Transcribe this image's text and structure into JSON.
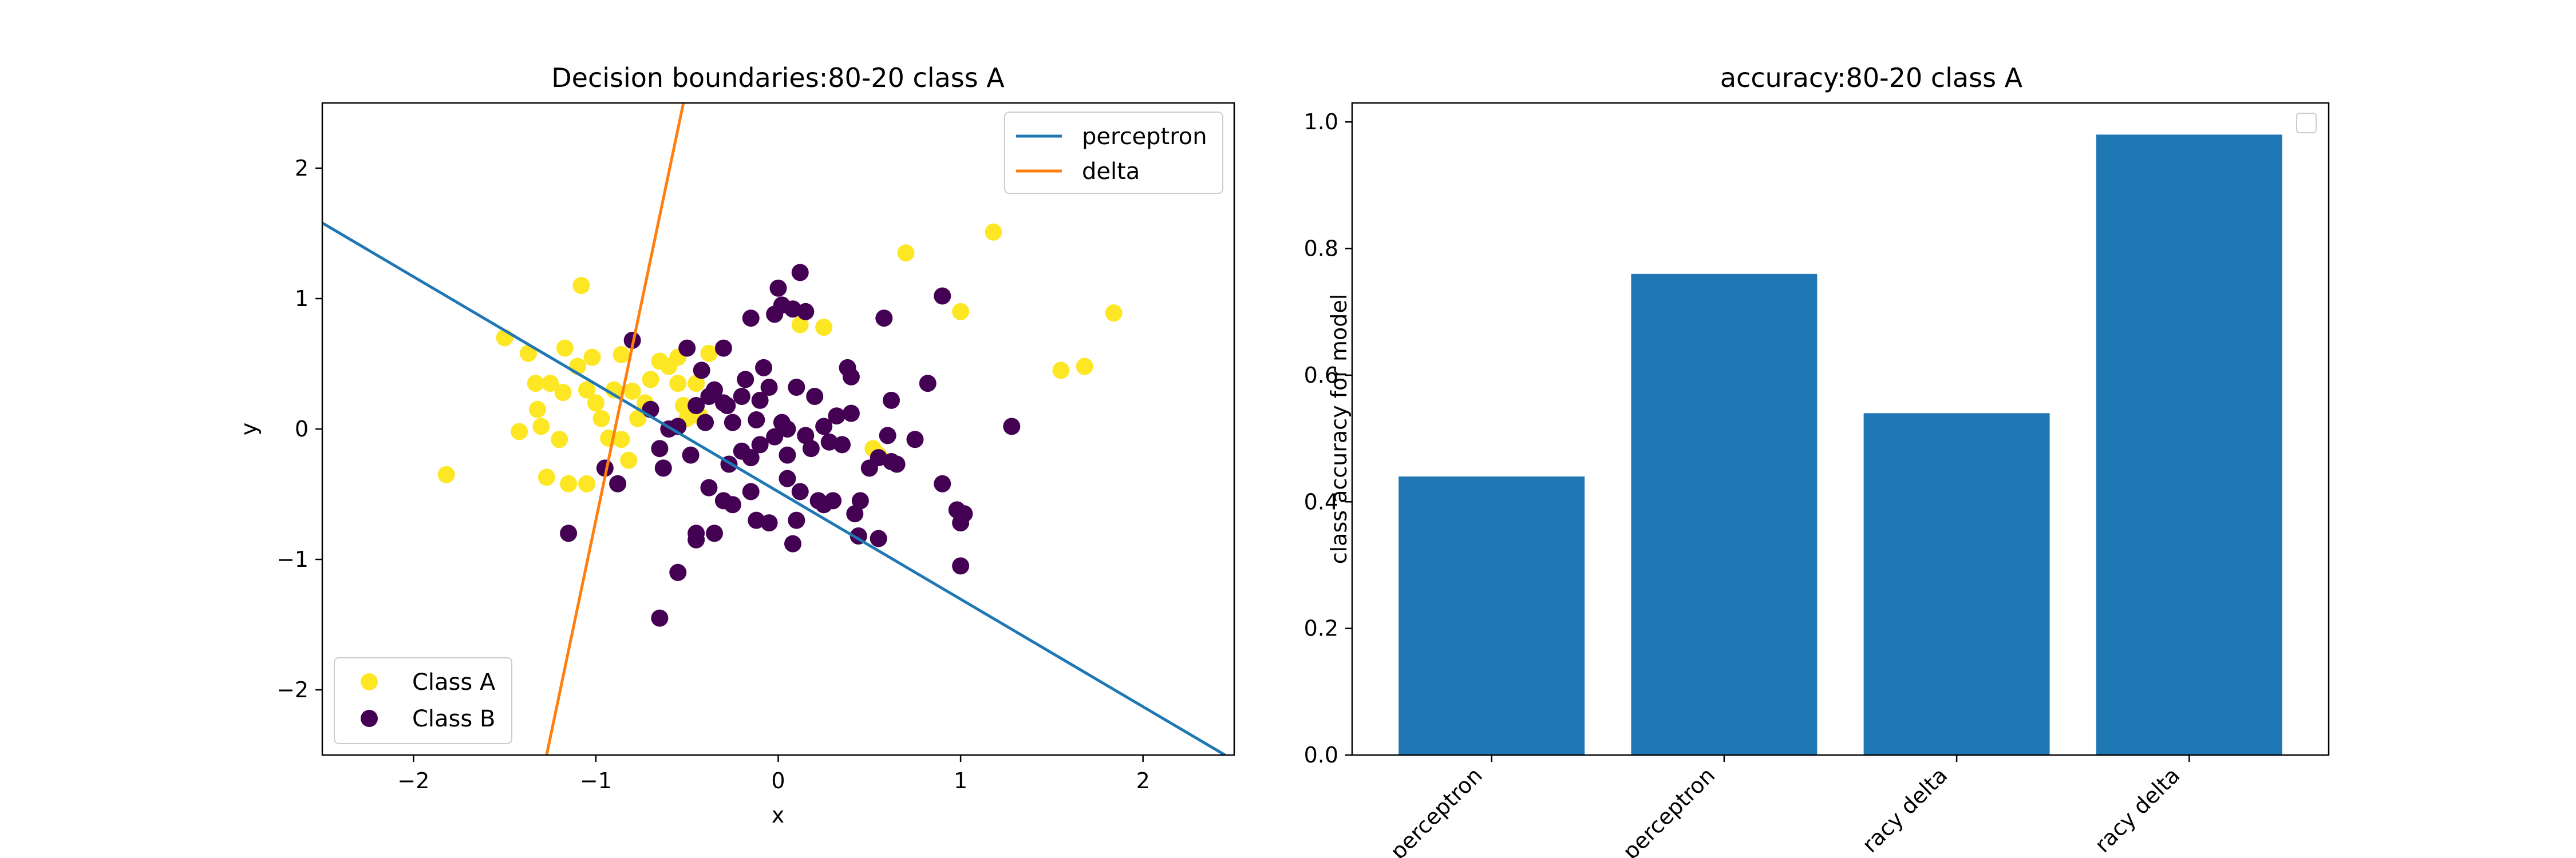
{
  "chart_data": [
    {
      "type": "scatter",
      "title": "Decision boundaries:80-20 class A",
      "xlabel": "x",
      "ylabel": "y",
      "xlim": [
        -2.5,
        2.5
      ],
      "ylim": [
        -2.5,
        2.5
      ],
      "xticks": [
        -2,
        -1,
        0,
        1,
        2
      ],
      "yticks": [
        -2,
        -1,
        0,
        1,
        2
      ],
      "xtick_labels": [
        "−2",
        "−1",
        "0",
        "1",
        "2"
      ],
      "ytick_labels": [
        "−2",
        "−1",
        "0",
        "1",
        "2"
      ],
      "grid": false,
      "lines": [
        {
          "name": "perceptron",
          "color": "#1f77b4",
          "points": [
            [
              -2.5,
              1.58
            ],
            [
              2.45,
              -2.5
            ]
          ]
        },
        {
          "name": "delta",
          "color": "#ff7f0e",
          "points": [
            [
              -1.27,
              -2.5
            ],
            [
              -0.52,
              2.5
            ]
          ]
        }
      ],
      "lines_legend_position": "upper right",
      "scatter_legend_position": "lower left",
      "series": [
        {
          "name": "Class A",
          "color": "#fde725",
          "points": [
            [
              -1.82,
              -0.35
            ],
            [
              -1.5,
              0.7
            ],
            [
              -1.37,
              0.58
            ],
            [
              -1.42,
              -0.02
            ],
            [
              -1.33,
              0.35
            ],
            [
              -1.32,
              0.15
            ],
            [
              -1.3,
              0.02
            ],
            [
              -1.27,
              -0.37
            ],
            [
              -1.25,
              0.35
            ],
            [
              -1.2,
              -0.08
            ],
            [
              -1.18,
              0.28
            ],
            [
              -1.17,
              0.62
            ],
            [
              -1.15,
              -0.42
            ],
            [
              -1.1,
              0.48
            ],
            [
              -1.08,
              1.1
            ],
            [
              -1.05,
              0.3
            ],
            [
              -1.05,
              -0.42
            ],
            [
              -1.02,
              0.55
            ],
            [
              -1.0,
              0.2
            ],
            [
              -0.97,
              0.08
            ],
            [
              -0.93,
              -0.07
            ],
            [
              -0.9,
              0.3
            ],
            [
              -0.86,
              0.57
            ],
            [
              -0.86,
              -0.08
            ],
            [
              -0.8,
              0.29
            ],
            [
              -0.82,
              -0.24
            ],
            [
              -0.77,
              0.08
            ],
            [
              -0.73,
              0.2
            ],
            [
              -0.7,
              0.38
            ],
            [
              -0.65,
              0.52
            ],
            [
              -0.6,
              0.48
            ],
            [
              -0.55,
              0.55
            ],
            [
              -0.55,
              0.35
            ],
            [
              -0.52,
              0.18
            ],
            [
              -0.5,
              0.08
            ],
            [
              -0.45,
              0.35
            ],
            [
              -0.43,
              0.1
            ],
            [
              -0.38,
              0.58
            ],
            [
              0.12,
              0.8
            ],
            [
              0.25,
              0.78
            ],
            [
              0.55,
              -0.2
            ],
            [
              0.52,
              -0.15
            ],
            [
              0.7,
              1.35
            ],
            [
              1.0,
              0.9
            ],
            [
              1.18,
              1.51
            ],
            [
              1.55,
              0.45
            ],
            [
              1.68,
              0.48
            ],
            [
              1.84,
              0.89
            ]
          ]
        },
        {
          "name": "Class B",
          "color": "#440154",
          "points": [
            [
              -1.15,
              -0.8
            ],
            [
              -0.95,
              -0.3
            ],
            [
              -0.88,
              -0.42
            ],
            [
              -0.8,
              0.68
            ],
            [
              -0.7,
              0.15
            ],
            [
              -0.65,
              -0.15
            ],
            [
              -0.63,
              -0.3
            ],
            [
              -0.6,
              0.0
            ],
            [
              -0.55,
              0.02
            ],
            [
              -0.5,
              0.62
            ],
            [
              -0.48,
              -0.2
            ],
            [
              -0.45,
              0.18
            ],
            [
              -0.42,
              0.45
            ],
            [
              -0.4,
              0.05
            ],
            [
              -0.38,
              0.25
            ],
            [
              -0.35,
              0.3
            ],
            [
              -0.3,
              0.2
            ],
            [
              -0.28,
              0.18
            ],
            [
              -0.3,
              0.62
            ],
            [
              -0.25,
              0.05
            ],
            [
              -0.2,
              0.25
            ],
            [
              -0.18,
              0.38
            ],
            [
              -0.15,
              0.85
            ],
            [
              -0.2,
              -0.17
            ],
            [
              -0.15,
              -0.22
            ],
            [
              -0.12,
              0.07
            ],
            [
              -0.1,
              0.22
            ],
            [
              -0.1,
              -0.12
            ],
            [
              -0.08,
              0.47
            ],
            [
              -0.05,
              0.32
            ],
            [
              -0.02,
              0.88
            ],
            [
              0.0,
              1.08
            ],
            [
              0.02,
              0.95
            ],
            [
              0.02,
              0.05
            ],
            [
              0.05,
              0.0
            ],
            [
              0.05,
              -0.2
            ],
            [
              0.08,
              0.92
            ],
            [
              0.12,
              1.2
            ],
            [
              0.15,
              0.9
            ],
            [
              0.1,
              0.32
            ],
            [
              0.15,
              -0.05
            ],
            [
              0.18,
              -0.15
            ],
            [
              0.2,
              0.25
            ],
            [
              0.25,
              0.02
            ],
            [
              0.28,
              -0.1
            ],
            [
              0.3,
              -0.55
            ],
            [
              0.32,
              0.1
            ],
            [
              0.35,
              -0.12
            ],
            [
              0.4,
              0.12
            ],
            [
              0.38,
              0.47
            ],
            [
              0.4,
              0.4
            ],
            [
              0.45,
              -0.55
            ],
            [
              0.42,
              -0.65
            ],
            [
              0.5,
              -0.3
            ],
            [
              0.55,
              -0.22
            ],
            [
              0.58,
              0.85
            ],
            [
              0.6,
              -0.05
            ],
            [
              0.62,
              0.22
            ],
            [
              0.62,
              -0.25
            ],
            [
              0.65,
              -0.27
            ],
            [
              0.75,
              -0.08
            ],
            [
              0.82,
              0.35
            ],
            [
              0.9,
              1.02
            ],
            [
              0.9,
              -0.42
            ],
            [
              0.98,
              -0.62
            ],
            [
              1.0,
              -0.72
            ],
            [
              1.02,
              -0.65
            ],
            [
              1.0,
              -1.05
            ],
            [
              1.28,
              0.02
            ],
            [
              0.22,
              -0.55
            ],
            [
              0.12,
              -0.48
            ],
            [
              0.1,
              -0.7
            ],
            [
              0.08,
              -0.88
            ],
            [
              -0.05,
              -0.72
            ],
            [
              -0.12,
              -0.7
            ],
            [
              -0.15,
              -0.48
            ],
            [
              -0.25,
              -0.58
            ],
            [
              -0.3,
              -0.55
            ],
            [
              -0.38,
              -0.45
            ],
            [
              -0.45,
              -0.8
            ],
            [
              -0.45,
              -0.85
            ],
            [
              -0.55,
              -1.1
            ],
            [
              -0.65,
              -1.45
            ],
            [
              -0.35,
              -0.8
            ],
            [
              0.05,
              -0.38
            ],
            [
              0.25,
              -0.58
            ],
            [
              -0.02,
              -0.06
            ],
            [
              -0.27,
              -0.27
            ],
            [
              0.44,
              -0.82
            ],
            [
              0.55,
              -0.84
            ]
          ]
        }
      ]
    },
    {
      "type": "bar",
      "title": "accuracy:80-20 class A",
      "xlabel": "",
      "ylabel": "class accuracy for model",
      "ylim": [
        0.0,
        1.03
      ],
      "yticks": [
        0.0,
        0.2,
        0.4,
        0.6,
        0.8,
        1.0
      ],
      "ytick_labels": [
        "0.0",
        "0.2",
        "0.4",
        "0.6",
        "0.8",
        "1.0"
      ],
      "grid": false,
      "legend_position": "upper right",
      "color": "#1f77b4",
      "categories": [
        "perceptron",
        "perceptron",
        "racy delta",
        "racy delta"
      ],
      "values": [
        0.44,
        0.76,
        0.54,
        0.98
      ]
    }
  ]
}
